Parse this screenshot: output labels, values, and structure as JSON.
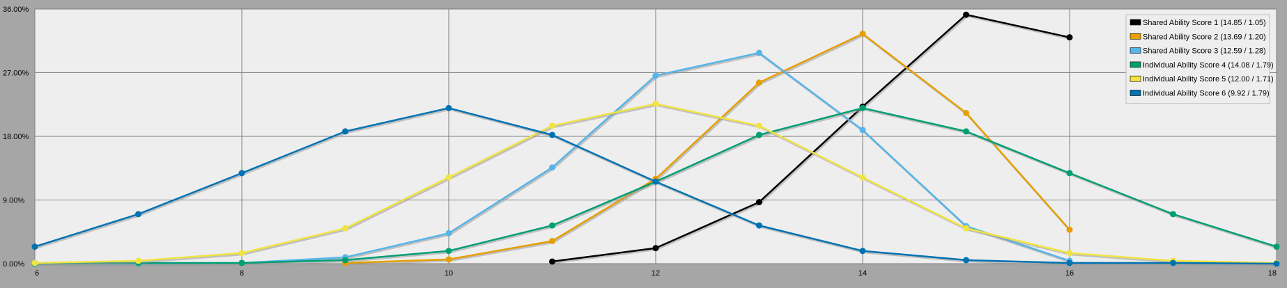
{
  "chart_data": {
    "type": "line",
    "title": "",
    "xlabel": "",
    "ylabel": "",
    "xlim": [
      6,
      18
    ],
    "ylim": [
      0,
      36
    ],
    "x_ticks": [
      6,
      8,
      10,
      12,
      14,
      16,
      18
    ],
    "y_ticks": [
      0,
      9,
      18,
      27,
      36
    ],
    "y_tick_labels": [
      "0.00%",
      "9.00%",
      "18.00%",
      "27.00%",
      "36.00%"
    ],
    "grid": true,
    "legend_position": "top-right",
    "colors": {
      "background": "#a6a6a6",
      "plot_area": "#eeeeee",
      "grid": "#7f7f7f"
    },
    "series": [
      {
        "name": "Shared Ability Score 1 (14.85 / 1.05)",
        "color": "#000000",
        "x": [
          11,
          12,
          13,
          14,
          15,
          16
        ],
        "y": [
          0.3,
          2.2,
          8.7,
          22.2,
          35.2,
          32.0
        ]
      },
      {
        "name": "Shared Ability Score 2 (13.69 / 1.20)",
        "color": "#e69f00",
        "x": [
          9,
          10,
          11,
          12,
          13,
          14,
          15,
          16
        ],
        "y": [
          0.1,
          0.6,
          3.2,
          12.0,
          25.6,
          32.5,
          21.3,
          4.8
        ]
      },
      {
        "name": "Shared Ability Score 3 (12.59 / 1.28)",
        "color": "#56b4e9",
        "x": [
          6,
          7,
          8,
          9,
          10,
          11,
          12,
          13,
          14,
          15,
          16
        ],
        "y": [
          0.0,
          0.0,
          0.1,
          0.9,
          4.3,
          13.6,
          26.6,
          29.8,
          18.9,
          5.3,
          0.4
        ]
      },
      {
        "name": "Individual Ability Score 4 (14.08 / 1.79)",
        "color": "#009e73",
        "x": [
          6,
          7,
          8,
          9,
          10,
          11,
          12,
          13,
          14,
          15,
          16,
          17,
          18
        ],
        "y": [
          0.0,
          0.1,
          0.1,
          0.5,
          1.8,
          5.4,
          11.6,
          18.2,
          22.0,
          18.7,
          12.8,
          7.0,
          2.4
        ]
      },
      {
        "name": "Individual Ability Score 5 (12.00 / 1.71)",
        "color": "#f0e442",
        "x": [
          6,
          7,
          8,
          9,
          10,
          11,
          12,
          13,
          14,
          15,
          16,
          17,
          18
        ],
        "y": [
          0.1,
          0.4,
          1.5,
          5.0,
          12.2,
          19.5,
          22.6,
          19.5,
          12.2,
          5.0,
          1.5,
          0.4,
          0.1
        ]
      },
      {
        "name": "Individual Ability Score 6 (9.92 / 1.79)",
        "color": "#0072b2",
        "x": [
          6,
          7,
          8,
          9,
          10,
          11,
          12,
          13,
          14,
          15,
          16,
          17,
          18
        ],
        "y": [
          2.4,
          7.0,
          12.8,
          18.7,
          22.0,
          18.2,
          11.6,
          5.4,
          1.8,
          0.5,
          0.1,
          0.1,
          0.0
        ]
      }
    ]
  }
}
